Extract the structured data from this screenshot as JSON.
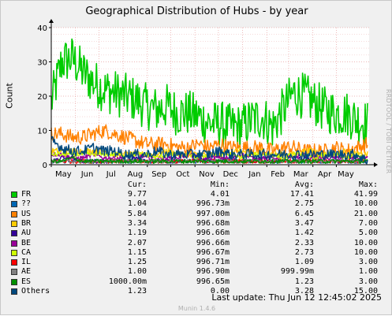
{
  "chart_data": {
    "type": "line",
    "title": "Geographical Distribution of Hubs - by year",
    "ylabel": "Count",
    "xlabel": "",
    "ylim": [
      0,
      40
    ],
    "yticks": [
      0,
      10,
      20,
      30,
      40
    ],
    "xticks": [
      "May",
      "Jun",
      "Jul",
      "Aug",
      "Sep",
      "Oct",
      "Nov",
      "Dec",
      "Jan",
      "Feb",
      "Mar",
      "Apr",
      "May"
    ],
    "grid": true,
    "x_start": "2024-05-01",
    "x_end": "2025-06-12",
    "series": [
      {
        "name": "FR",
        "color": "#00cc00",
        "values": [
          18,
          30,
          31,
          27,
          24,
          22,
          21,
          20,
          19,
          17,
          16,
          17,
          15,
          15,
          14,
          12,
          12,
          11,
          11,
          13,
          14,
          11,
          16,
          21,
          20,
          18,
          16,
          15,
          15,
          13,
          12
        ]
      },
      {
        "name": "??",
        "color": "#0066b3",
        "values": [
          1,
          1,
          1,
          1,
          1,
          1,
          1,
          1,
          1,
          1,
          1,
          1,
          1,
          1,
          1,
          1,
          1,
          1,
          1,
          1,
          1,
          1,
          1,
          1,
          1,
          1,
          1,
          1,
          1,
          1,
          1
        ]
      },
      {
        "name": "US",
        "color": "#ff8000",
        "values": [
          9,
          9,
          8,
          8,
          9,
          10,
          9,
          8,
          7,
          6,
          6,
          6,
          5,
          5,
          6,
          5,
          6,
          5,
          5,
          5,
          5,
          4,
          5,
          5,
          4,
          4,
          4,
          5,
          4,
          5,
          6
        ]
      },
      {
        "name": "BR",
        "color": "#ffcc00",
        "values": [
          4,
          4,
          4,
          4,
          4,
          4,
          3,
          3,
          3,
          3,
          3,
          4,
          3,
          3,
          3,
          3,
          3,
          4,
          4,
          3,
          4,
          3,
          3,
          3,
          4,
          4,
          3,
          3,
          4,
          3,
          3
        ]
      },
      {
        "name": "AU",
        "color": "#330099",
        "values": [
          1,
          2,
          2,
          1,
          1,
          1,
          1,
          1,
          2,
          1,
          1,
          1,
          1,
          1,
          2,
          1,
          1,
          2,
          1,
          1,
          2,
          1,
          1,
          1,
          2,
          1,
          1,
          1,
          1,
          1,
          1
        ]
      },
      {
        "name": "BE",
        "color": "#990099",
        "values": [
          3,
          3,
          2,
          2,
          3,
          2,
          2,
          2,
          3,
          2,
          2,
          2,
          2,
          3,
          2,
          2,
          2,
          2,
          3,
          2,
          2,
          2,
          2,
          2,
          3,
          2,
          2,
          2,
          2,
          2,
          2
        ]
      },
      {
        "name": "CA",
        "color": "#ccff00",
        "values": [
          3,
          3,
          3,
          3,
          3,
          3,
          3,
          3,
          3,
          3,
          2,
          3,
          3,
          3,
          2,
          3,
          3,
          3,
          2,
          3,
          3,
          3,
          2,
          3,
          3,
          2,
          3,
          3,
          2,
          3,
          1
        ]
      },
      {
        "name": "IL",
        "color": "#ff0000",
        "values": [
          1,
          1,
          1,
          1,
          1,
          1,
          1,
          1,
          1,
          1,
          1,
          1,
          1,
          1,
          1,
          1,
          1,
          1,
          1,
          1,
          1,
          1,
          1,
          1,
          1,
          1,
          1,
          1,
          1,
          1,
          1
        ]
      },
      {
        "name": "AE",
        "color": "#808080",
        "values": [
          1,
          1,
          1,
          1,
          1,
          1,
          1,
          1,
          1,
          1,
          1,
          1,
          1,
          1,
          1,
          1,
          1,
          1,
          1,
          1,
          1,
          1,
          1,
          1,
          1,
          1,
          1,
          1,
          1,
          1,
          1
        ]
      },
      {
        "name": "ES",
        "color": "#008f00",
        "values": [
          1,
          1,
          2,
          1,
          1,
          1,
          1,
          1,
          1,
          1,
          1,
          1,
          1,
          1,
          1,
          1,
          1,
          1,
          1,
          1,
          1,
          1,
          1,
          1,
          1,
          1,
          1,
          1,
          1,
          1,
          1
        ]
      },
      {
        "name": "Others",
        "color": "#00487d",
        "values": [
          7,
          5,
          4,
          4,
          5,
          4,
          4,
          3,
          3,
          3,
          4,
          3,
          3,
          3,
          3,
          3,
          4,
          3,
          3,
          3,
          3,
          3,
          3,
          3,
          3,
          3,
          3,
          3,
          3,
          3,
          1
        ]
      }
    ]
  },
  "legend": {
    "headers": {
      "cur": "Cur:",
      "min": "Min:",
      "avg": "Avg:",
      "max": "Max:"
    },
    "rows": [
      {
        "name": "FR",
        "color": "#00cc00",
        "cur": "9.77",
        "min": "4.01",
        "avg": "17.41",
        "max": "41.99"
      },
      {
        "name": "??",
        "color": "#0066b3",
        "cur": "1.04",
        "min": "996.73m",
        "avg": "2.75",
        "max": "10.00"
      },
      {
        "name": "US",
        "color": "#ff8000",
        "cur": "5.84",
        "min": "997.00m",
        "avg": "6.45",
        "max": "21.00"
      },
      {
        "name": "BR",
        "color": "#ffcc00",
        "cur": "3.34",
        "min": "996.68m",
        "avg": "3.47",
        "max": "7.00"
      },
      {
        "name": "AU",
        "color": "#330099",
        "cur": "1.19",
        "min": "996.66m",
        "avg": "1.42",
        "max": "5.00"
      },
      {
        "name": "BE",
        "color": "#990099",
        "cur": "2.07",
        "min": "996.66m",
        "avg": "2.33",
        "max": "10.00"
      },
      {
        "name": "CA",
        "color": "#ccff00",
        "cur": "1.15",
        "min": "996.67m",
        "avg": "2.73",
        "max": "10.00"
      },
      {
        "name": "IL",
        "color": "#ff0000",
        "cur": "1.25",
        "min": "996.71m",
        "avg": "1.09",
        "max": "3.00"
      },
      {
        "name": "AE",
        "color": "#808080",
        "cur": "1.00",
        "min": "996.90m",
        "avg": "999.99m",
        "max": "1.00"
      },
      {
        "name": "ES",
        "color": "#008f00",
        "cur": "1000.00m",
        "min": "996.65m",
        "avg": "1.23",
        "max": "3.00"
      },
      {
        "name": "Others",
        "color": "#00487d",
        "cur": "1.23",
        "min": "0.00",
        "avg": "3.28",
        "max": "15.00"
      }
    ]
  },
  "side_label": "RRDTOOL / TOBI OETIKER",
  "footer": {
    "last_update": "Last update:  Thu Jun 12 12:45:02 2025"
  },
  "munin_version": "Munin 1.4.6"
}
